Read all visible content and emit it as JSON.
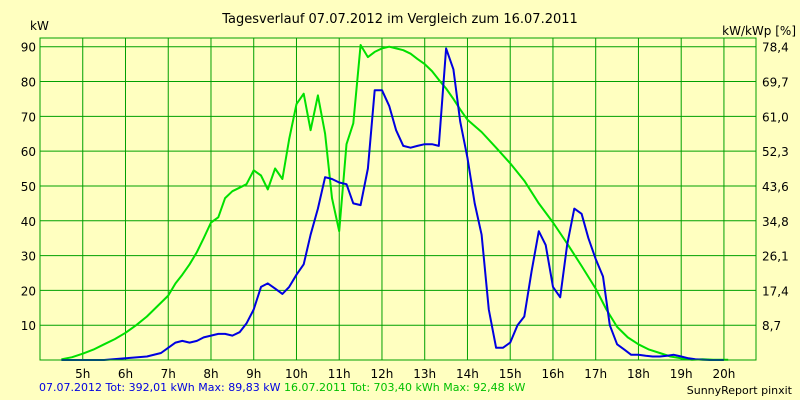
{
  "chart_data": {
    "type": "line",
    "title": "Tagesverlauf 07.07.2012 im Vergleich zum 16.07.2011",
    "ylabel_left": "kW",
    "ylabel_right": "kW/kWp [%]",
    "x_ticks": [
      {
        "v": 5,
        "label": "5h"
      },
      {
        "v": 6,
        "label": "6h"
      },
      {
        "v": 7,
        "label": "7h"
      },
      {
        "v": 8,
        "label": "8h"
      },
      {
        "v": 9,
        "label": "9h"
      },
      {
        "v": 10,
        "label": "10h"
      },
      {
        "v": 11,
        "label": "11h"
      },
      {
        "v": 12,
        "label": "12h"
      },
      {
        "v": 13,
        "label": "13h"
      },
      {
        "v": 14,
        "label": "14h"
      },
      {
        "v": 15,
        "label": "15h"
      },
      {
        "v": 16,
        "label": "16h"
      },
      {
        "v": 17,
        "label": "17h"
      },
      {
        "v": 18,
        "label": "18h"
      },
      {
        "v": 19,
        "label": "19h"
      },
      {
        "v": 20,
        "label": "20h"
      }
    ],
    "y_ticks_left": [
      {
        "v": 10,
        "label": "10"
      },
      {
        "v": 20,
        "label": "20"
      },
      {
        "v": 30,
        "label": "30"
      },
      {
        "v": 40,
        "label": "40"
      },
      {
        "v": 50,
        "label": "50"
      },
      {
        "v": 60,
        "label": "60"
      },
      {
        "v": 70,
        "label": "70"
      },
      {
        "v": 80,
        "label": "80"
      },
      {
        "v": 90,
        "label": "90"
      }
    ],
    "y_ticks_right": [
      {
        "v": 10,
        "label": "8,7"
      },
      {
        "v": 20,
        "label": "17,4"
      },
      {
        "v": 30,
        "label": "26,1"
      },
      {
        "v": 40,
        "label": "34,8"
      },
      {
        "v": 50,
        "label": "43,6"
      },
      {
        "v": 60,
        "label": "52,3"
      },
      {
        "v": 70,
        "label": "61,0"
      },
      {
        "v": 80,
        "label": "69,7"
      },
      {
        "v": 90,
        "label": "78,4"
      }
    ],
    "xlim": [
      4.0,
      20.75
    ],
    "ylim": [
      0,
      92.5
    ],
    "grid": true,
    "series": [
      {
        "name": "16.07.2011",
        "color": "#00e000",
        "x": [
          4.5,
          4.75,
          5.0,
          5.25,
          5.5,
          5.75,
          6.0,
          6.25,
          6.5,
          6.75,
          7.0,
          7.17,
          7.33,
          7.5,
          7.67,
          7.83,
          8.0,
          8.17,
          8.33,
          8.5,
          8.67,
          8.83,
          9.0,
          9.17,
          9.33,
          9.5,
          9.67,
          9.83,
          10.0,
          10.17,
          10.33,
          10.5,
          10.67,
          10.83,
          11.0,
          11.17,
          11.33,
          11.5,
          11.67,
          11.83,
          12.0,
          12.17,
          12.33,
          12.5,
          12.67,
          12.83,
          13.0,
          13.17,
          13.33,
          13.5,
          13.67,
          13.83,
          14.0,
          14.33,
          14.67,
          15.0,
          15.33,
          15.67,
          16.0,
          16.33,
          16.67,
          17.0,
          17.25,
          17.5,
          17.75,
          18.0,
          18.25,
          18.5,
          18.75,
          19.0,
          19.25,
          19.5,
          19.75,
          19.9,
          20.1
        ],
        "values": [
          0.2,
          0.8,
          1.8,
          3.0,
          4.5,
          6.0,
          7.8,
          10.0,
          12.5,
          15.5,
          18.5,
          22.0,
          24.5,
          27.5,
          31.0,
          35.0,
          39.5,
          41.0,
          46.5,
          48.5,
          49.5,
          50.5,
          54.5,
          53.0,
          49.0,
          55.0,
          52.0,
          63.5,
          73.5,
          76.5,
          66.0,
          76.0,
          65.0,
          46.5,
          37.0,
          62.0,
          68.0,
          90.5,
          87.0,
          88.5,
          89.5,
          90.0,
          89.5,
          89.0,
          88.0,
          86.5,
          85.0,
          83.0,
          80.5,
          78.0,
          75.0,
          72.0,
          69.0,
          65.5,
          61.0,
          56.5,
          51.5,
          45.0,
          39.5,
          33.5,
          27.0,
          20.5,
          14.5,
          9.5,
          6.5,
          4.5,
          3.0,
          2.0,
          1.0,
          0.5,
          0.1,
          0.2,
          0.1,
          0.1,
          0.1
        ]
      },
      {
        "name": "07.07.2012",
        "color": "#0000e0",
        "x": [
          4.5,
          5.5,
          6.0,
          6.5,
          6.83,
          7.0,
          7.17,
          7.33,
          7.5,
          7.67,
          7.83,
          8.0,
          8.17,
          8.33,
          8.5,
          8.67,
          8.83,
          9.0,
          9.17,
          9.33,
          9.5,
          9.67,
          9.83,
          10.0,
          10.17,
          10.33,
          10.5,
          10.67,
          10.83,
          11.0,
          11.17,
          11.33,
          11.5,
          11.67,
          11.83,
          12.0,
          12.17,
          12.33,
          12.5,
          12.67,
          12.83,
          13.0,
          13.17,
          13.33,
          13.5,
          13.67,
          13.83,
          14.0,
          14.17,
          14.33,
          14.5,
          14.67,
          14.83,
          15.0,
          15.17,
          15.33,
          15.5,
          15.67,
          15.83,
          16.0,
          16.17,
          16.33,
          16.5,
          16.67,
          16.83,
          17.0,
          17.17,
          17.33,
          17.5,
          17.67,
          17.83,
          18.0,
          18.17,
          18.33,
          18.5,
          18.67,
          18.83,
          19.0,
          19.17,
          19.33,
          19.5,
          19.67,
          19.83,
          20.0
        ],
        "values": [
          0,
          0,
          0.5,
          1.0,
          2.0,
          3.5,
          5.0,
          5.5,
          5.0,
          5.5,
          6.5,
          7.0,
          7.5,
          7.5,
          7.0,
          8.0,
          10.5,
          14.5,
          21.0,
          22.0,
          20.5,
          19.0,
          21.0,
          24.5,
          27.5,
          36.0,
          43.5,
          52.5,
          52.0,
          51.0,
          50.5,
          45.0,
          44.5,
          55.0,
          77.5,
          77.5,
          73.0,
          66.0,
          61.5,
          61.0,
          61.5,
          62.0,
          62.0,
          61.5,
          89.5,
          83.5,
          68.5,
          58.0,
          45.0,
          36.0,
          14.5,
          3.5,
          3.5,
          5.0,
          10.0,
          12.5,
          25.5,
          37.0,
          33.0,
          21.0,
          18.0,
          33.0,
          43.5,
          42.0,
          35.0,
          29.0,
          24.0,
          10.0,
          4.5,
          3.0,
          1.5,
          1.5,
          1.2,
          1.0,
          1.0,
          1.2,
          1.5,
          1.0,
          0.5,
          0.2,
          0.1,
          0,
          0,
          0
        ]
      }
    ]
  },
  "footer": {
    "s2012_label": "07.07.2012 Tot: 392,01 kWh Max: 89,83 kW",
    "s2011_label": "16.07.2011 Tot: 703,40 kWh Max: 92,48 kW",
    "credit": "SunnyReport pinxit"
  },
  "colors": {
    "background": "#ffffc0",
    "grid": "#00a000",
    "green": "#00e000",
    "blue": "#0000e0"
  }
}
